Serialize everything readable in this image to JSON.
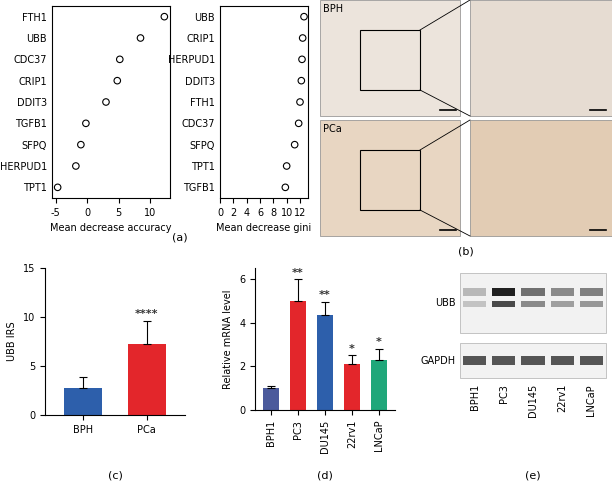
{
  "chart_data": [
    {
      "type": "dot",
      "panel": "(a)",
      "categories": [
        "FTH1",
        "UBB",
        "CDC37",
        "CRIP1",
        "DDIT3",
        "TGFB1",
        "SFPQ",
        "HERPUD1",
        "TPT1"
      ],
      "values": [
        12.3,
        8.5,
        5.2,
        4.8,
        3.0,
        -0.2,
        -1.0,
        -1.8,
        -4.7
      ],
      "xlabel": "Mean decrease accuracy",
      "xlim": [
        -5.6,
        13.2
      ],
      "xticks": [
        -5,
        0,
        5,
        10
      ],
      "marker": "circle",
      "color": "#000000"
    },
    {
      "type": "dot",
      "categories": [
        "UBB",
        "CRIP1",
        "HERPUD1",
        "DDIT3",
        "FTH1",
        "CDC37",
        "SFPQ",
        "TPT1",
        "TGFB1"
      ],
      "values": [
        12.6,
        12.4,
        12.3,
        12.2,
        12.0,
        11.8,
        11.2,
        10.0,
        9.8
      ],
      "xlabel": "Mean decrease gini",
      "xlim": [
        0,
        13.2
      ],
      "xticks": [
        0,
        2,
        4,
        6,
        8,
        10,
        12
      ],
      "marker": "circle",
      "color": "#000000"
    },
    {
      "type": "bar",
      "panel": "(c)",
      "categories": [
        "BPH",
        "PCa"
      ],
      "values": [
        2.8,
        7.2
      ],
      "errors": [
        1.1,
        2.4
      ],
      "colors": [
        "#2d5fab",
        "#e3262b"
      ],
      "ylabel": "UBB IRS",
      "ylim": [
        0,
        15
      ],
      "yticks": [
        0,
        5,
        10,
        15
      ],
      "annotations": [
        {
          "category": "PCa",
          "text": "****"
        }
      ]
    },
    {
      "type": "bar",
      "panel": "(d)",
      "categories": [
        "BPH1",
        "PC3",
        "DU145",
        "22rv1",
        "LNCaP"
      ],
      "values": [
        1.0,
        5.0,
        4.35,
        2.1,
        2.3
      ],
      "errors": [
        0.1,
        1.0,
        0.6,
        0.4,
        0.5
      ],
      "colors": [
        "#4b5a9c",
        "#e3262b",
        "#2d5fab",
        "#e3262b",
        "#1fa77a"
      ],
      "ylabel": "Relative mRNA level",
      "ylim": [
        0,
        6.5
      ],
      "yticks": [
        0,
        2,
        4,
        6
      ],
      "annotations": [
        {
          "category": "PC3",
          "text": "**"
        },
        {
          "category": "DU145",
          "text": "**"
        },
        {
          "category": "22rv1",
          "text": "*"
        },
        {
          "category": "LNCaP",
          "text": "*"
        }
      ]
    }
  ],
  "images": {
    "panel": "(b)",
    "labels": [
      "BPH",
      "PCa"
    ]
  },
  "blot": {
    "panel": "(e)",
    "rows": [
      "UBB",
      "GAPDH"
    ],
    "lanes": [
      "BPH1",
      "PC3",
      "DU145",
      "22rv1",
      "LNCaP"
    ]
  }
}
